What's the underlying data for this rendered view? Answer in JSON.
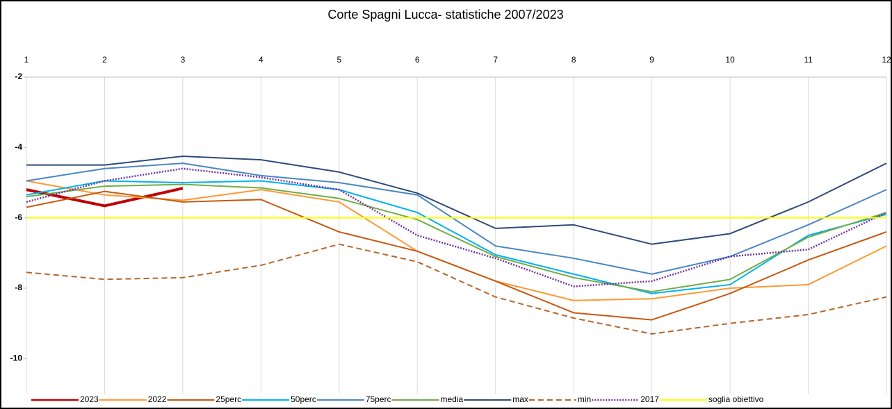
{
  "chart_data": {
    "type": "line",
    "title": "Corte Spagni Lucca- statistiche 2007/2023",
    "x": [
      1,
      2,
      3,
      4,
      5,
      6,
      7,
      8,
      9,
      10,
      11,
      12
    ],
    "xlim": [
      1,
      12
    ],
    "xticks": [
      1,
      2,
      3,
      4,
      5,
      6,
      7,
      8,
      9,
      10,
      11,
      12
    ],
    "ylim": [
      -11,
      -2
    ],
    "yticks": [
      -2,
      -4,
      -6,
      -8,
      -10
    ],
    "grid": true,
    "legend": "bottom",
    "series": [
      {
        "name": "2023",
        "color": "#c00000",
        "width": 4,
        "dash": "solid",
        "values": [
          -5.2,
          -5.66,
          -5.16,
          null,
          null,
          null,
          null,
          null,
          null,
          null,
          null,
          null
        ]
      },
      {
        "name": "2022",
        "color": "#ff9933",
        "width": 2,
        "dash": "solid",
        "values": [
          -4.95,
          -5.35,
          -5.5,
          -5.2,
          -5.55,
          -6.95,
          -7.8,
          -8.35,
          -8.3,
          -8.0,
          -7.9,
          -6.8
        ]
      },
      {
        "name": "25perc",
        "color": "#c65911",
        "width": 2,
        "dash": "solid",
        "values": [
          -5.7,
          -5.25,
          -5.55,
          -5.48,
          -6.4,
          -6.95,
          -7.8,
          -8.7,
          -8.9,
          -8.15,
          -7.2,
          -6.4
        ]
      },
      {
        "name": "50perc",
        "color": "#00b0f0",
        "width": 2,
        "dash": "solid",
        "values": [
          -5.35,
          -4.95,
          -5.0,
          -4.95,
          -5.2,
          -5.85,
          -7.05,
          -7.6,
          -8.15,
          -7.9,
          -6.5,
          -5.9
        ]
      },
      {
        "name": "75perc",
        "color": "#4a86c5",
        "width": 2,
        "dash": "solid",
        "values": [
          -4.95,
          -4.6,
          -4.45,
          -4.8,
          -5.0,
          -5.35,
          -6.8,
          -7.15,
          -7.6,
          -7.1,
          -6.2,
          -5.2
        ]
      },
      {
        "name": "media",
        "color": "#70ad47",
        "width": 2,
        "dash": "solid",
        "values": [
          -5.4,
          -5.1,
          -5.05,
          -5.15,
          -5.45,
          -6.05,
          -7.1,
          -7.7,
          -8.1,
          -7.75,
          -6.55,
          -5.85
        ]
      },
      {
        "name": "max",
        "color": "#2f4a7a",
        "width": 2,
        "dash": "solid",
        "values": [
          -4.5,
          -4.5,
          -4.25,
          -4.35,
          -4.7,
          -5.3,
          -6.3,
          -6.2,
          -6.75,
          -6.45,
          -5.55,
          -4.45
        ]
      },
      {
        "name": "min",
        "color": "#b5652a",
        "width": 2,
        "dash": "dashed",
        "values": [
          -7.55,
          -7.75,
          -7.7,
          -7.35,
          -6.75,
          -7.25,
          -8.25,
          -8.85,
          -9.3,
          -9.0,
          -8.75,
          -8.25
        ]
      },
      {
        "name": "2017",
        "color": "#7030a0",
        "width": 2.5,
        "dash": "dotted",
        "values": [
          -5.55,
          -4.95,
          -4.6,
          -4.85,
          -5.2,
          -6.5,
          -7.15,
          -7.95,
          -7.8,
          -7.1,
          -6.9,
          -5.85
        ]
      },
      {
        "name": "soglia obiettivo",
        "color": "#ffff00",
        "width": 2,
        "dash": "solid",
        "values": [
          -6,
          -6,
          -6,
          -6,
          -6,
          -6,
          -6,
          -6,
          -6,
          -6,
          -6,
          -6
        ]
      }
    ]
  }
}
